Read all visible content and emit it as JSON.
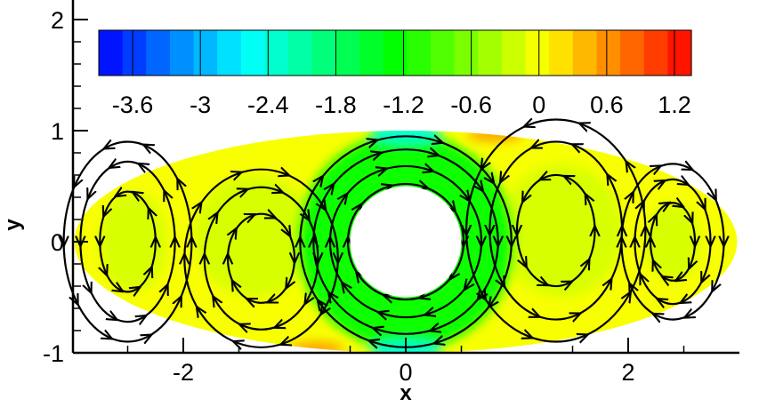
{
  "chart_data": {
    "type": "heatmap",
    "title": "",
    "xlabel": "x",
    "ylabel": "y",
    "xlim": [
      -3,
      3
    ],
    "ylim": [
      -1,
      2.5
    ],
    "x_ticks": [
      "-2",
      "0",
      "2"
    ],
    "y_ticks": [
      "-1",
      "0",
      "1",
      "2"
    ],
    "domain": {
      "shape": "ellipse",
      "ellipse_center": [
        0,
        0
      ],
      "ellipse_semi_axes": [
        2.98,
        1.0
      ],
      "inner_cylinder_radius": 0.5
    },
    "colorbar": {
      "placement": "top, horizontal, inside plot",
      "range": [
        -3.9,
        1.35
      ],
      "tick_labels": [
        "-3.6",
        "-3",
        "-2.4",
        "-1.8",
        "-1.2",
        "-0.6",
        "0",
        "0.6",
        "1.2"
      ],
      "tick_values": [
        -3.6,
        -3.0,
        -2.4,
        -1.8,
        -1.2,
        -0.6,
        0,
        0.6,
        1.2
      ],
      "level_count": 25,
      "colormap_stops": [
        "#0000ff",
        "#0080ff",
        "#00ffff",
        "#00ff80",
        "#00ff00",
        "#80ff00",
        "#ffff00",
        "#ff8000",
        "#ff0000"
      ]
    },
    "field_levels": {
      "annulus_around_cylinder": -1.2,
      "outer_flow": 0.0,
      "near_top_bottom_of_annulus": -2.4,
      "upper_right_edge": 0.6
    },
    "vortices": [
      {
        "name": "left-outer",
        "center": [
          -2.5,
          0.0
        ],
        "rx": 0.25,
        "ry": 0.45,
        "sense": "ccw"
      },
      {
        "name": "left-inner",
        "center": [
          -1.3,
          -0.15
        ],
        "rx": 0.3,
        "ry": 0.4,
        "sense": "cw"
      },
      {
        "name": "central-annulus",
        "center": [
          0,
          0
        ],
        "radii": [
          0.52,
          0.68,
          0.83,
          0.95
        ],
        "sense": "cw"
      },
      {
        "name": "right-inner",
        "center": [
          1.35,
          0.1
        ],
        "rx": 0.35,
        "ry": 0.5,
        "sense": "ccw"
      },
      {
        "name": "right-outer",
        "center": [
          2.4,
          0.0
        ],
        "rx": 0.2,
        "ry": 0.35,
        "sense": "cw"
      }
    ]
  }
}
